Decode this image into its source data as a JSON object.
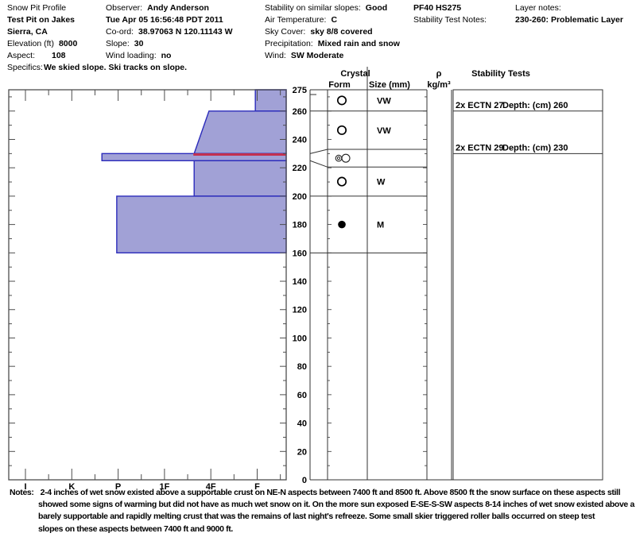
{
  "header": {
    "c1": {
      "title": "Snow Pit Profile",
      "pit_name": "Test Pit on Jakes",
      "location": "Sierra, CA",
      "elevation_label": "Elevation (ft)",
      "elevation_value": "8000",
      "aspect_label": "Aspect:",
      "aspect_value": "108",
      "specifics_label": "Specifics:",
      "specifics_value": "We skied slope. Ski tracks on slope."
    },
    "c2": {
      "observer_label": "Observer:",
      "observer_value": "Andy Anderson",
      "datetime": "Tue Apr 05 16:56:48 PDT 2011",
      "coord_label": "Co-ord:",
      "coord_value": "38.97063 N 120.11143 W",
      "slope_label": "Slope:",
      "slope_value": "30",
      "wind_loading_label": "Wind loading:",
      "wind_loading_value": "no"
    },
    "c3": {
      "stability_label": "Stability on similar slopes:",
      "stability_value": "Good",
      "air_temp_label": "Air Temperature:",
      "air_temp_value": "C",
      "sky_label": "Sky Cover:",
      "sky_value": "sky 8/8 covered",
      "precip_label": "Precipitation:",
      "precip_value": "Mixed rain and snow",
      "wind_label": "Wind:",
      "wind_value": "SW Moderate"
    },
    "c4": {
      "pf_hs": "PF40 HS275",
      "test_notes_label": "Stability Test Notes:"
    },
    "c5": {
      "layer_notes_label": "Layer notes:",
      "layer_notes_value": "230-260: Problematic Layer"
    }
  },
  "notes": {
    "label": "Notes:",
    "lines": [
      "2-4 inches of wet snow existed above a supportable crust on NE-N aspects between 7400 ft and 8500 ft. Above 8500 ft the snow surface on these aspects still",
      "showed some signs of warming but did not have as much wet snow on it. On the more sun exposed E-SE-S-SW aspects 8-14 inches of wet snow existed above a",
      "barely supportable and rapidly melting crust that was the remains of last night's refreeze. Some small skier triggered roller balls occurred on steep test",
      "slopes on these aspects between 7400 ft and 9000 ft."
    ]
  },
  "chart_data": {
    "type": "bar",
    "subtype": "snow-pit-hardness-profile",
    "depth_axis": {
      "min": 0,
      "max": 275,
      "unit": "cm",
      "tick_labels": [
        275,
        260,
        240,
        220,
        200,
        180,
        160,
        140,
        120,
        100,
        80,
        60,
        40,
        20,
        0
      ]
    },
    "hardness_axis": {
      "categories": [
        "I",
        "K",
        "P",
        "1F",
        "4F",
        "F"
      ]
    },
    "layers": [
      {
        "top_cm": 275,
        "bottom_cm": 260,
        "hardness": "F",
        "h_top": 4.96,
        "h_bottom": 4.96,
        "wetness": "VW"
      },
      {
        "top_cm": 260,
        "bottom_cm": 230,
        "hardness": "4F",
        "h_top": 3.96,
        "h_bottom": 3.64,
        "wetness": "VW"
      },
      {
        "top_cm": 230,
        "bottom_cm": 225,
        "hardness": "K-P",
        "h_top": 1.65,
        "h_bottom": 1.65,
        "wetness": ""
      },
      {
        "top_cm": 225,
        "bottom_cm": 200,
        "hardness": "4F+",
        "h_top": 3.64,
        "h_bottom": 3.64,
        "wetness": "W"
      },
      {
        "top_cm": 200,
        "bottom_cm": 160,
        "hardness": "P",
        "h_top": 1.97,
        "h_bottom": 1.97,
        "wetness": "M"
      }
    ],
    "problem_line_cm": 230,
    "grain_rows": [
      {
        "top_cm": 275,
        "bottom_cm": 260,
        "row_top_cm": 275,
        "row_bottom_cm": 260,
        "form_symbol": "open-circle",
        "size": "VW",
        "callout": false
      },
      {
        "top_cm": 260,
        "bottom_cm": 230,
        "row_top_cm": 260,
        "row_bottom_cm": 233,
        "form_symbol": "open-circle",
        "size": "VW",
        "callout": false
      },
      {
        "top_cm": 230,
        "bottom_cm": 225,
        "row_top_cm": 233,
        "row_bottom_cm": 220.5,
        "form_symbol": "melt-freeze-crust",
        "size": "",
        "callout": true
      },
      {
        "top_cm": 225,
        "bottom_cm": 200,
        "row_top_cm": 220.5,
        "row_bottom_cm": 200,
        "form_symbol": "open-circle",
        "size": "W",
        "callout": false
      },
      {
        "top_cm": 200,
        "bottom_cm": 160,
        "row_top_cm": 200,
        "row_bottom_cm": 160,
        "form_symbol": "filled-circle",
        "size": "M",
        "callout": false
      }
    ],
    "table_headers": {
      "crystal": "Crystal",
      "form": "Form",
      "size": "Size (mm)",
      "rho": "ρ",
      "rho_unit": "kg/m³",
      "stability": "Stability Tests"
    },
    "stability_tests": [
      {
        "test": "2x ECTN 27",
        "depth_label": "Depth: (cm) 260",
        "depth_cm": 260
      },
      {
        "test": "2x ECTN 29",
        "depth_label": "Depth: (cm) 230",
        "depth_cm": 230
      }
    ],
    "colors": {
      "layer_fill": "#a1a1d6",
      "layer_border": "#2b2bbb",
      "problem_line": "#c23050",
      "frame": "#4d4d4d",
      "grid": "#333333"
    }
  }
}
